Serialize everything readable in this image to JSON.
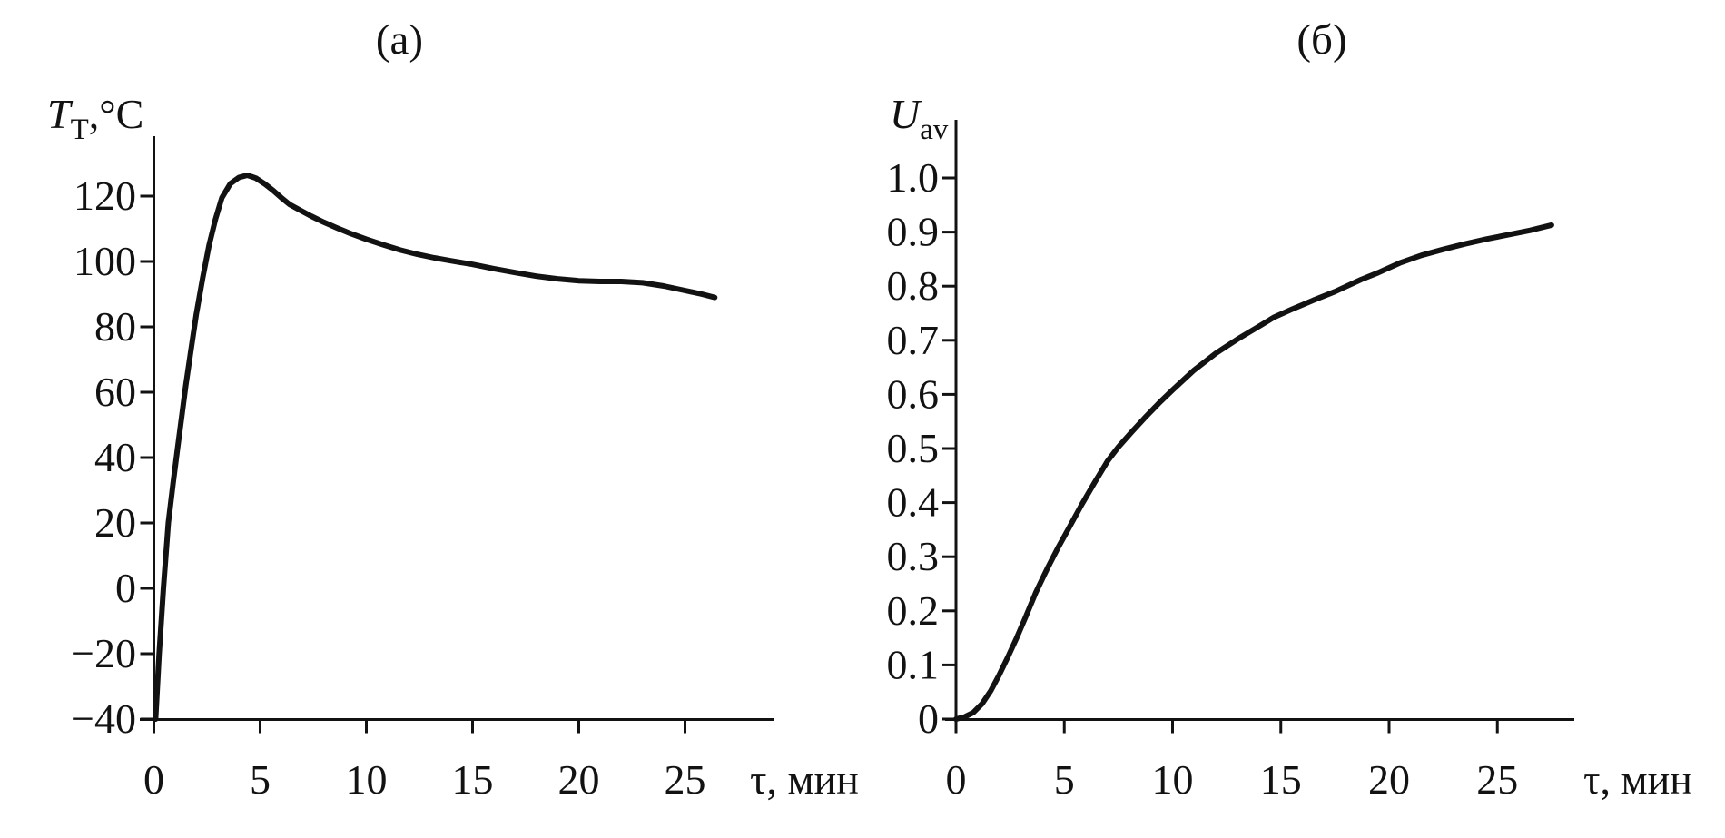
{
  "figure": {
    "background": "#ffffff",
    "ink": "#121212"
  },
  "chart_data": [
    {
      "type": "line",
      "title": "(а)",
      "xlabel": "τ, мин",
      "ylabel": "T_Т,°C",
      "ylabel_parts": {
        "base": "T",
        "sub": "Т",
        "rest": ",°C"
      },
      "x_ticks": [
        0,
        5,
        10,
        15,
        20,
        25
      ],
      "x_tick_labels": [
        "0",
        "5",
        "10",
        "15",
        "20",
        "25"
      ],
      "y_ticks": [
        120,
        100,
        80,
        60,
        40,
        20,
        0,
        -20,
        -40
      ],
      "y_tick_labels": [
        "120",
        "100",
        "80",
        "60",
        "40",
        "20",
        "0",
        "−20",
        "−40"
      ],
      "xlim": [
        0,
        29
      ],
      "ylim": [
        -40,
        140
      ],
      "grid": false,
      "legend_position": "none",
      "series": [
        {
          "name": "T_Т vs τ (tool temperature, rises to peak ~126°C at ~4.4 min then decays to ~89°C)",
          "points": [
            [
              0.08,
              -40
            ],
            [
              0.25,
              -20
            ],
            [
              0.45,
              0
            ],
            [
              0.68,
              20
            ],
            [
              0.9,
              32
            ],
            [
              1.1,
              42
            ],
            [
              1.3,
              52
            ],
            [
              1.5,
              62
            ],
            [
              1.75,
              73
            ],
            [
              2.0,
              84
            ],
            [
              2.3,
              95
            ],
            [
              2.6,
              105
            ],
            [
              2.9,
              113
            ],
            [
              3.2,
              119.5
            ],
            [
              3.6,
              123.8
            ],
            [
              4.0,
              125.7
            ],
            [
              4.4,
              126.4
            ],
            [
              4.8,
              125.5
            ],
            [
              5.2,
              123.8
            ],
            [
              5.6,
              121.8
            ],
            [
              6.0,
              119.5
            ],
            [
              6.4,
              117.4
            ],
            [
              6.9,
              115.6
            ],
            [
              7.4,
              113.9
            ],
            [
              8.0,
              112
            ],
            [
              8.6,
              110.3
            ],
            [
              9.2,
              108.7
            ],
            [
              10,
              106.8
            ],
            [
              10.8,
              105.1
            ],
            [
              11.6,
              103.5
            ],
            [
              12.4,
              102.2
            ],
            [
              13.2,
              101.1
            ],
            [
              14,
              100.2
            ],
            [
              15,
              99.1
            ],
            [
              16,
              97.8
            ],
            [
              17,
              96.6
            ],
            [
              18,
              95.5
            ],
            [
              19,
              94.7
            ],
            [
              20,
              94.1
            ],
            [
              21,
              93.9
            ],
            [
              22,
              93.9
            ],
            [
              23,
              93.5
            ],
            [
              24,
              92.5
            ],
            [
              25,
              91.1
            ],
            [
              25.8,
              90
            ],
            [
              26.4,
              89
            ]
          ]
        }
      ]
    },
    {
      "type": "line",
      "title": "(б)",
      "xlabel": "τ, мин",
      "ylabel": "U_av",
      "ylabel_parts": {
        "base": "U",
        "sub": "av",
        "rest": ""
      },
      "x_ticks": [
        0,
        5,
        10,
        15,
        20,
        25
      ],
      "x_tick_labels": [
        "0",
        "5",
        "10",
        "15",
        "20",
        "25"
      ],
      "y_ticks": [
        1.0,
        0.9,
        0.8,
        0.7,
        0.6,
        0.5,
        0.4,
        0.3,
        0.2,
        0.1,
        0
      ],
      "y_tick_labels": [
        "1.0",
        "0.9",
        "0.8",
        "0.7",
        "0.6",
        "0.5",
        "0.4",
        "0.3",
        "0.2",
        "0.1",
        "0"
      ],
      "xlim": [
        0,
        28.6
      ],
      "ylim": [
        0,
        1.1
      ],
      "grid": false,
      "legend_position": "none",
      "series": [
        {
          "name": "U_av vs τ (sigmoid rise from 0 to ~0.91 at ~27.5 min)",
          "points": [
            [
              0,
              0
            ],
            [
              0.4,
              0.004
            ],
            [
              0.8,
              0.012
            ],
            [
              1.2,
              0.028
            ],
            [
              1.6,
              0.052
            ],
            [
              2.0,
              0.082
            ],
            [
              2.4,
              0.115
            ],
            [
              2.8,
              0.15
            ],
            [
              3.2,
              0.187
            ],
            [
              3.7,
              0.235
            ],
            [
              4.2,
              0.277
            ],
            [
              4.7,
              0.316
            ],
            [
              5.2,
              0.352
            ],
            [
              5.8,
              0.396
            ],
            [
              6.4,
              0.437
            ],
            [
              7.0,
              0.477
            ],
            [
              7.5,
              0.503
            ],
            [
              8.1,
              0.53
            ],
            [
              8.7,
              0.556
            ],
            [
              9.4,
              0.585
            ],
            [
              10,
              0.608
            ],
            [
              11,
              0.645
            ],
            [
              12,
              0.676
            ],
            [
              13,
              0.702
            ],
            [
              14,
              0.726
            ],
            [
              14.7,
              0.743
            ],
            [
              15.5,
              0.757
            ],
            [
              16.5,
              0.774
            ],
            [
              17.5,
              0.79
            ],
            [
              18.7,
              0.812
            ],
            [
              19.5,
              0.825
            ],
            [
              20.5,
              0.843
            ],
            [
              21.5,
              0.857
            ],
            [
              22.5,
              0.868
            ],
            [
              23.5,
              0.878
            ],
            [
              24.5,
              0.887
            ],
            [
              25.5,
              0.895
            ],
            [
              26.5,
              0.903
            ],
            [
              27.5,
              0.913
            ]
          ]
        }
      ]
    }
  ]
}
